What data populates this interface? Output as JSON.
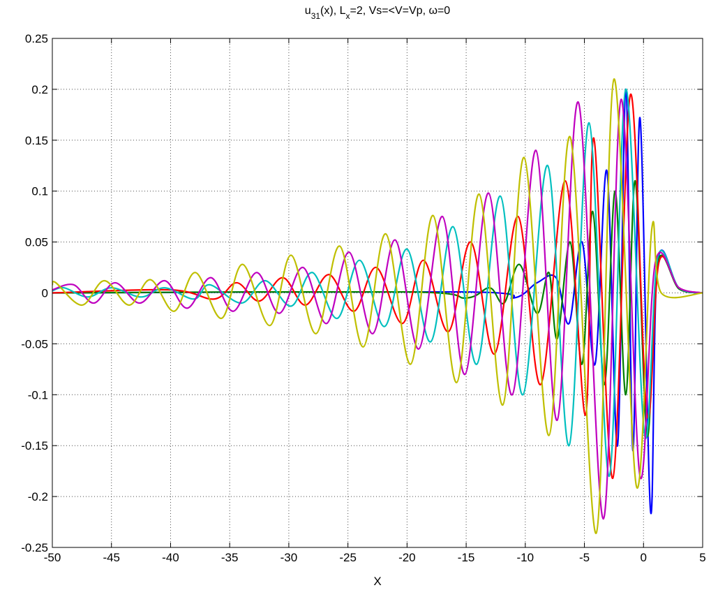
{
  "chart_data": {
    "type": "line",
    "title": [
      {
        "text": "u"
      },
      {
        "text": "31",
        "sub": true
      },
      {
        "text": "(x), L"
      },
      {
        "text": "x",
        "sub": true
      },
      {
        "text": "=2,  Vs=<V=Vp, ω=0"
      }
    ],
    "x_label": "X",
    "xlim": [
      -50,
      5
    ],
    "ylim": [
      -0.25,
      0.25
    ],
    "xticks": [
      -50,
      -45,
      -40,
      -35,
      -30,
      -25,
      -20,
      -15,
      -10,
      -5,
      0,
      5
    ],
    "yticks": [
      -0.25,
      -0.2,
      -0.15,
      -0.1,
      -0.05,
      0,
      0.05,
      0.1,
      0.15,
      0.2,
      0.25
    ],
    "grid": true,
    "series": [
      {
        "color": "#0000ff",
        "x": [
          -50,
          -15,
          -11,
          -9,
          -7.4,
          -6.3,
          -5.2,
          -4.1,
          -3.1,
          -2.2,
          -1.5,
          -0.9,
          -0.3,
          0.6,
          1.2,
          3,
          5
        ],
        "values": [
          0,
          0.001,
          -0.005,
          0.01,
          0.015,
          -0.03,
          0.05,
          -0.07,
          0.12,
          -0.15,
          0.2,
          -0.155,
          0.172,
          -0.215,
          0.03,
          0.004,
          0
        ]
      },
      {
        "color": "#007f00",
        "x": [
          -50,
          -20,
          -15,
          -13,
          -11.8,
          -10.5,
          -9,
          -8,
          -7.3,
          -6.2,
          -5.2,
          -4.3,
          -3.3,
          -2.4,
          -1.5,
          -0.7,
          0.3,
          1.2,
          3,
          5
        ],
        "values": [
          0,
          0.001,
          -0.005,
          0.005,
          -0.01,
          0.028,
          -0.02,
          0.02,
          -0.045,
          0.05,
          -0.07,
          0.08,
          -0.09,
          0.1,
          -0.1,
          0.11,
          -0.14,
          0.03,
          0.004,
          0
        ]
      },
      {
        "color": "#ff0000",
        "x": [
          -50,
          -40,
          -36.3,
          -34.4,
          -32.5,
          -30.5,
          -28.6,
          -26.6,
          -24.5,
          -22.6,
          -20.4,
          -18.6,
          -16.5,
          -14.6,
          -12.6,
          -10.6,
          -8.7,
          -6.6,
          -4.9,
          -4.2,
          -2.6,
          -1.1,
          0.3,
          1.3,
          3,
          5
        ],
        "values": [
          0,
          0.003,
          -0.006,
          0.01,
          -0.008,
          0.015,
          -0.012,
          0.018,
          -0.018,
          0.025,
          -0.03,
          0.032,
          -0.038,
          0.05,
          -0.06,
          0.075,
          -0.09,
          0.11,
          -0.12,
          0.152,
          -0.182,
          0.195,
          -0.12,
          0.03,
          0.005,
          0
        ]
      },
      {
        "color": "#00bfbf",
        "x": [
          -50,
          -49,
          -47,
          -45,
          -42.5,
          -40.5,
          -38,
          -36.7,
          -34,
          -32,
          -29.8,
          -28,
          -25.9,
          -24,
          -21.9,
          -20,
          -18,
          -16.1,
          -14.1,
          -12.1,
          -10.2,
          -8.1,
          -6.3,
          -4.6,
          -2.9,
          -1.5,
          0.1,
          1.2,
          3,
          5
        ],
        "values": [
          0.002,
          0.005,
          -0.004,
          0.005,
          -0.004,
          0.005,
          -0.006,
          0.008,
          -0.01,
          0.012,
          -0.013,
          0.02,
          -0.025,
          0.032,
          -0.033,
          0.043,
          -0.048,
          0.065,
          -0.07,
          0.095,
          -0.1,
          0.125,
          -0.15,
          0.167,
          -0.18,
          0.2,
          -0.14,
          0.035,
          0.005,
          0
        ]
      },
      {
        "color": "#bf00bf",
        "x": [
          -50,
          -48.2,
          -46.5,
          -44.7,
          -42.6,
          -40.5,
          -38.6,
          -36.6,
          -34.7,
          -32.7,
          -30.8,
          -28.8,
          -26.8,
          -24.9,
          -22.9,
          -21,
          -19,
          -17,
          -15.1,
          -13.1,
          -11.1,
          -9.1,
          -7.3,
          -5.5,
          -3.4,
          -1.9,
          -0.3,
          1,
          3,
          5
        ],
        "values": [
          0.003,
          0.008,
          -0.01,
          0.01,
          -0.01,
          0.012,
          -0.015,
          0.015,
          -0.018,
          0.02,
          -0.02,
          0.025,
          -0.03,
          0.04,
          -0.04,
          0.052,
          -0.055,
          0.075,
          -0.08,
          0.098,
          -0.1,
          0.14,
          -0.125,
          0.187,
          -0.222,
          0.19,
          -0.18,
          0.03,
          0.005,
          0
        ]
      },
      {
        "color": "#bfbf00",
        "x": [
          -50,
          -49.7,
          -47.5,
          -45.6,
          -43.5,
          -41.7,
          -39.7,
          -37.9,
          -35.7,
          -33.9,
          -31.6,
          -29.8,
          -27.7,
          -25.7,
          -23.7,
          -21.8,
          -19.7,
          -17.8,
          -15.8,
          -13.9,
          -11.9,
          -10.1,
          -8,
          -6.2,
          -4,
          -2.5,
          -0.6,
          0.7,
          1.5,
          5
        ],
        "values": [
          0.008,
          0.01,
          -0.012,
          0.012,
          -0.012,
          0.013,
          -0.018,
          0.02,
          -0.025,
          0.028,
          -0.032,
          0.037,
          -0.04,
          0.046,
          -0.053,
          0.058,
          -0.07,
          0.076,
          -0.088,
          0.097,
          -0.11,
          0.133,
          -0.14,
          0.153,
          -0.236,
          0.21,
          -0.19,
          0.063,
          0,
          0
        ]
      }
    ]
  }
}
